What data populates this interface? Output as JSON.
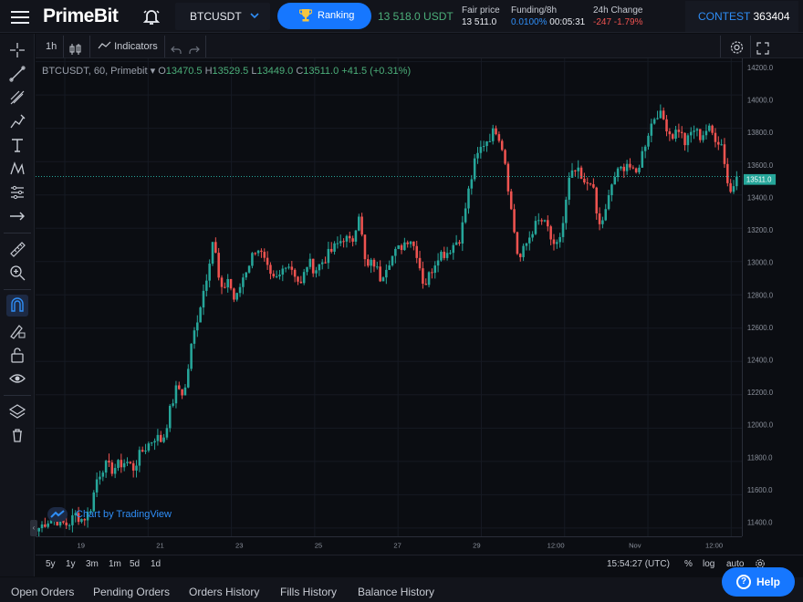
{
  "header": {
    "logo": "PrimeBit",
    "symbol": "BTCUSDT",
    "ranking_label": "Ranking",
    "last_price": "13 518.0 USDT",
    "fair_price": {
      "label": "Fair price",
      "value": "13 511.0"
    },
    "funding": {
      "label": "Funding/8h",
      "rate": "0.0100%",
      "countdown": "00:05:31"
    },
    "change": {
      "label": "24h Change",
      "value": "-247 -1.79%"
    },
    "contest": {
      "label": "CONTEST",
      "value": "363404"
    }
  },
  "toolbar": {
    "interval": "1h",
    "indicators_label": "Indicators"
  },
  "legend": {
    "symbol_text": "BTCUSDT, 60, Primebit",
    "o_label": "O",
    "o": "13470.5",
    "h_label": "H",
    "h": "13529.5",
    "l_label": "L",
    "l": "13449.0",
    "c_label": "C",
    "c": "13511.0",
    "change": "+41.5 (+0.31%)"
  },
  "tradingview_label": "Chart by TradingView",
  "chart_data": {
    "type": "candlestick",
    "y_ticks": [
      11400.0,
      11600.0,
      11800.0,
      12000.0,
      12200.0,
      12400.0,
      12600.0,
      12800.0,
      13000.0,
      13200.0,
      13400.0,
      13600.0,
      13800.0,
      14000.0,
      14200.0
    ],
    "ylim": [
      11350,
      14220
    ],
    "x_ticks": [
      "19",
      "21",
      "23",
      "25",
      "27",
      "29",
      "12:00",
      "Nov",
      "12:00"
    ],
    "last_price_label": "13511.0",
    "last_price": 13511.0,
    "close_path": [
      11400,
      11440,
      11460,
      11430,
      11420,
      11480,
      11450,
      11500,
      11700,
      11780,
      11750,
      11780,
      11800,
      11760,
      11850,
      11900,
      11950,
      11920,
      12100,
      12250,
      12200,
      12500,
      12700,
      12900,
      13150,
      12800,
      12900,
      12750,
      12900,
      13000,
      13100,
      13000,
      12880,
      12900,
      13000,
      12950,
      12850,
      13000,
      12950,
      13000,
      13050,
      13100,
      13150,
      13100,
      13300,
      12950,
      13000,
      12900,
      13000,
      13050,
      13100,
      13150,
      13050,
      12850,
      12950,
      13050,
      13050,
      13100,
      13150,
      13400,
      13600,
      13700,
      13750,
      13800,
      13650,
      13300,
      13000,
      13100,
      13200,
      13250,
      13200,
      13050,
      13200,
      13500,
      13550,
      13450,
      13500,
      13200,
      13300,
      13500,
      13550,
      13600,
      13500,
      13650,
      13800,
      13900,
      13850,
      13750,
      13800,
      13700,
      13800,
      13750,
      13800,
      13750,
      13700,
      13400,
      13511
    ]
  },
  "timeframes": [
    "5y",
    "1y",
    "3m",
    "1m",
    "5d",
    "1d"
  ],
  "utc_time": "15:54:27 (UTC)",
  "scale_buttons": [
    "%",
    "log",
    "auto"
  ],
  "tabs": [
    "Open Orders",
    "Pending Orders",
    "Orders History",
    "Fills History",
    "Balance History"
  ],
  "help_label": "Help",
  "colors": {
    "up": "#26a69a",
    "down": "#ef5350",
    "accent": "#1677ff"
  }
}
